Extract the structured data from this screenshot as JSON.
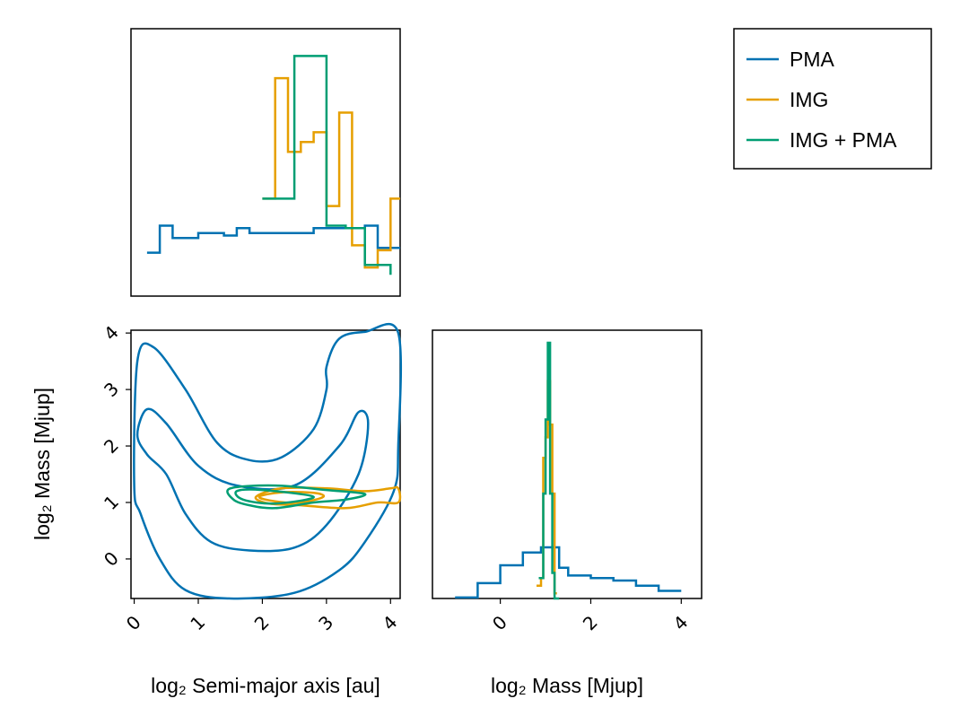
{
  "chart_data": [
    {
      "panel": "marginal-semi-major-axis",
      "type": "histogram-step",
      "xlim": [
        -0.05,
        4.15
      ],
      "series": [
        {
          "name": "PMA",
          "color": "#0072B2",
          "edges": [
            0.2,
            0.4,
            0.6,
            1.0,
            1.4,
            1.6,
            1.8,
            2.5,
            2.6,
            2.8,
            3.4,
            3.6,
            3.8,
            4.15
          ],
          "heights": [
            0.14,
            0.25,
            0.2,
            0.22,
            0.21,
            0.24,
            0.22,
            0.22,
            0.22,
            0.24,
            0.24,
            0.25,
            0.16
          ]
        },
        {
          "name": "IMG",
          "color": "#E69F00",
          "edges": [
            2.0,
            2.2,
            2.4,
            2.6,
            2.8,
            3.0,
            3.2,
            3.4,
            3.6,
            3.8,
            4.0,
            4.15
          ],
          "heights": [
            0.36,
            0.85,
            0.55,
            0.59,
            0.63,
            0.33,
            0.71,
            0.17,
            0.08,
            0.15,
            0.36
          ]
        },
        {
          "name": "IMG + PMA",
          "color": "#009E73",
          "edges": [
            2.0,
            2.5,
            3.0,
            3.3,
            3.6,
            4.0
          ],
          "heights": [
            0.36,
            0.94,
            0.25,
            0.24,
            0.09,
            0.05
          ]
        }
      ]
    },
    {
      "panel": "joint-contours",
      "type": "contour",
      "xlabel": "log₂ Semi-major axis [au]",
      "ylabel": "log₂ Mass [Mjup]",
      "xlim": [
        -0.05,
        4.15
      ],
      "ylim": [
        -0.7,
        4.05
      ],
      "xticks": [
        "0",
        "1",
        "2",
        "3",
        "4"
      ],
      "yticks": [
        "0",
        "1",
        "2",
        "3",
        "4"
      ],
      "series": [
        {
          "name": "PMA",
          "color": "#0072B2",
          "levels": [
            [
              [
                0.0,
                1.3
              ],
              [
                0.05,
                3.5
              ],
              [
                0.3,
                3.75
              ],
              [
                0.8,
                3.0
              ],
              [
                1.3,
                2.05
              ],
              [
                1.8,
                1.75
              ],
              [
                2.3,
                1.8
              ],
              [
                2.8,
                2.3
              ],
              [
                3.0,
                3.0
              ],
              [
                3.0,
                3.4
              ],
              [
                3.2,
                3.9
              ],
              [
                3.6,
                4.02
              ],
              [
                4.12,
                4.0
              ],
              [
                4.12,
                2.0
              ],
              [
                4.05,
                1.2
              ],
              [
                3.6,
                0.3
              ],
              [
                3.2,
                -0.2
              ],
              [
                2.5,
                -0.6
              ],
              [
                1.5,
                -0.7
              ],
              [
                0.8,
                -0.55
              ],
              [
                0.4,
                0.0
              ],
              [
                0.1,
                0.8
              ],
              [
                0.0,
                1.3
              ]
            ],
            [
              [
                0.05,
                2.2
              ],
              [
                0.2,
                2.65
              ],
              [
                0.5,
                2.4
              ],
              [
                1.0,
                1.65
              ],
              [
                1.6,
                1.3
              ],
              [
                2.5,
                1.3
              ],
              [
                3.2,
                2.0
              ],
              [
                3.5,
                2.6
              ],
              [
                3.65,
                2.4
              ],
              [
                3.5,
                1.5
              ],
              [
                3.0,
                0.6
              ],
              [
                2.5,
                0.2
              ],
              [
                1.8,
                0.15
              ],
              [
                1.2,
                0.3
              ],
              [
                0.8,
                0.8
              ],
              [
                0.5,
                1.5
              ],
              [
                0.2,
                1.85
              ],
              [
                0.05,
                2.2
              ]
            ]
          ]
        },
        {
          "name": "IMG",
          "color": "#E69F00",
          "levels": [
            [
              [
                1.9,
                1.1
              ],
              [
                2.3,
                1.25
              ],
              [
                3.0,
                1.25
              ],
              [
                3.6,
                1.2
              ],
              [
                4.0,
                1.25
              ],
              [
                4.12,
                1.25
              ],
              [
                4.12,
                1.0
              ],
              [
                3.8,
                1.0
              ],
              [
                3.3,
                0.9
              ],
              [
                2.6,
                0.95
              ],
              [
                2.1,
                0.98
              ],
              [
                1.9,
                1.1
              ]
            ],
            [
              [
                1.95,
                1.1
              ],
              [
                2.3,
                1.18
              ],
              [
                2.8,
                1.17
              ],
              [
                2.95,
                1.1
              ],
              [
                2.6,
                1.0
              ],
              [
                2.2,
                1.02
              ],
              [
                1.95,
                1.1
              ]
            ]
          ]
        },
        {
          "name": "IMG + PMA",
          "color": "#009E73",
          "levels": [
            [
              [
                1.5,
                1.25
              ],
              [
                2.2,
                1.3
              ],
              [
                3.0,
                1.22
              ],
              [
                3.6,
                1.15
              ],
              [
                3.3,
                1.05
              ],
              [
                2.8,
                1.0
              ],
              [
                2.2,
                0.9
              ],
              [
                1.8,
                0.95
              ],
              [
                1.55,
                1.05
              ],
              [
                1.5,
                1.25
              ]
            ],
            [
              [
                1.6,
                1.2
              ],
              [
                2.0,
                1.22
              ],
              [
                2.8,
                1.1
              ],
              [
                2.2,
                0.98
              ],
              [
                1.7,
                1.05
              ],
              [
                1.6,
                1.2
              ]
            ]
          ]
        }
      ]
    },
    {
      "panel": "marginal-mass",
      "type": "histogram-step",
      "xlabel": "log₂ Mass [Mjup]",
      "xlim": [
        -1.5,
        4.45
      ],
      "xticks": [
        "0",
        "2",
        "4"
      ],
      "series": [
        {
          "name": "PMA",
          "color": "#0072B2",
          "edges": [
            -1.0,
            -0.5,
            0.0,
            0.5,
            0.9,
            1.3,
            1.5,
            2.0,
            2.5,
            3.0,
            3.5,
            4.0
          ],
          "heights": [
            0.004,
            0.06,
            0.13,
            0.18,
            0.2,
            0.12,
            0.09,
            0.08,
            0.07,
            0.05,
            0.03
          ]
        },
        {
          "name": "IMG",
          "color": "#E69F00",
          "edges": [
            0.8,
            0.9,
            0.95,
            1.0,
            1.05,
            1.1,
            1.15,
            1.2,
            1.25
          ],
          "heights": [
            0.05,
            0.08,
            0.55,
            0.63,
            0.85,
            0.68,
            0.41,
            0.02
          ]
        },
        {
          "name": "IMG + PMA",
          "color": "#009E73",
          "edges": [
            0.85,
            0.95,
            1.0,
            1.05,
            1.1,
            1.15,
            1.2,
            1.3
          ],
          "heights": [
            0.08,
            0.41,
            0.7,
            1.0,
            0.41,
            0.1,
            0.0
          ]
        }
      ]
    }
  ],
  "legend": [
    {
      "label": "PMA",
      "color": "#0072B2"
    },
    {
      "label": "IMG",
      "color": "#E69F00"
    },
    {
      "label": "IMG + PMA",
      "color": "#009E73"
    }
  ],
  "labels": {
    "joint_xlabel": "log₂ Semi-major axis [au]",
    "joint_ylabel": "log₂ Mass [Mjup]",
    "mass_xlabel": "log₂ Mass [Mjup]"
  }
}
